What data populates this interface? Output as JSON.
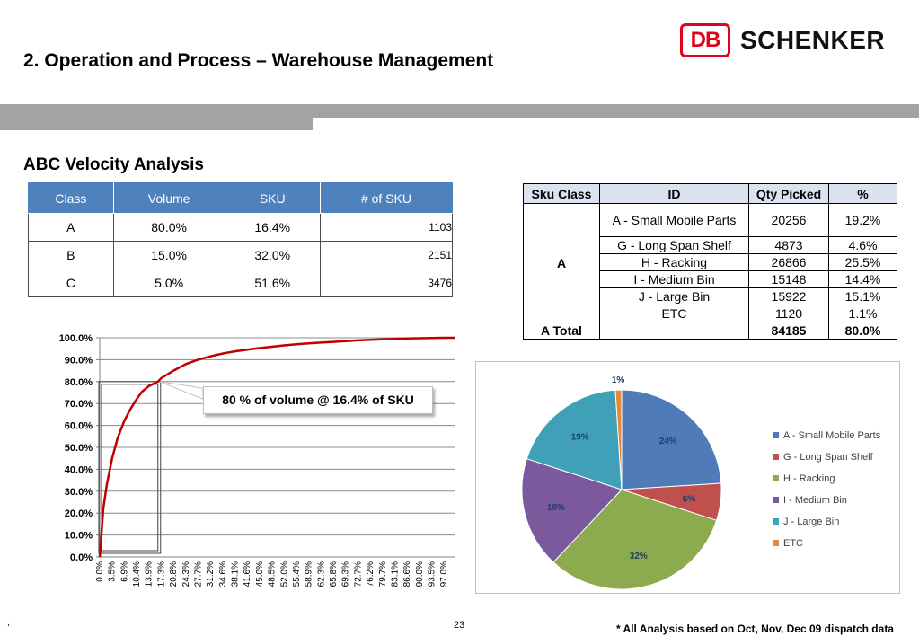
{
  "header": {
    "title": "2. Operation and Process – Warehouse Management",
    "logo": {
      "db_text": "DB",
      "brand_text": "SCHENKER",
      "db_color": "#e2001a"
    }
  },
  "subtitle": "ABC Velocity Analysis",
  "abc_table": {
    "headers": [
      "Class",
      "Volume",
      "SKU",
      "# of SKU"
    ],
    "rows": [
      [
        "A",
        "80.0%",
        "16.4%",
        "1103"
      ],
      [
        "B",
        "15.0%",
        "32.0%",
        "2151"
      ],
      [
        "C",
        "5.0%",
        "51.6%",
        "3476"
      ]
    ]
  },
  "sku_table": {
    "headers": [
      "Sku Class",
      "ID",
      "Qty Picked",
      "%"
    ],
    "class_label": "A",
    "rows": [
      [
        "A - Small Mobile Parts",
        "20256",
        "19.2%"
      ],
      [
        "G - Long Span Shelf",
        "4873",
        "4.6%"
      ],
      [
        "H - Racking",
        "26866",
        "25.5%"
      ],
      [
        "I - Medium Bin",
        "15148",
        "14.4%"
      ],
      [
        "J - Large Bin",
        "15922",
        "15.1%"
      ],
      [
        "ETC",
        "1120",
        "1.1%"
      ]
    ],
    "total": [
      "A Total",
      "",
      "84185",
      "80.0%"
    ]
  },
  "callout": "80 % of volume @ 16.4% of SKU",
  "footer": {
    "page_number": "23",
    "comma": ",",
    "note": "* All Analysis based on Oct, Nov, Dec 09 dispatch data"
  },
  "chart_data": [
    {
      "type": "line",
      "title": "",
      "xlabel": "",
      "ylabel": "",
      "ylim": [
        0,
        100
      ],
      "y_ticks": [
        "0.0%",
        "10.0%",
        "20.0%",
        "30.0%",
        "40.0%",
        "50.0%",
        "60.0%",
        "70.0%",
        "80.0%",
        "90.0%",
        "100.0%"
      ],
      "x_ticks": [
        "0.0%",
        "3.5%",
        "6.9%",
        "10.4%",
        "13.9%",
        "17.3%",
        "20.8%",
        "24.3%",
        "27.7%",
        "31.2%",
        "34.6%",
        "38.1%",
        "41.6%",
        "45.0%",
        "48.5%",
        "52.0%",
        "55.4%",
        "58.9%",
        "62.3%",
        "65.8%",
        "69.3%",
        "72.7%",
        "76.2%",
        "79.7%",
        "83.1%",
        "86.6%",
        "90.0%",
        "93.5%",
        "97.0%"
      ],
      "series": [
        {
          "color": "#c00000",
          "x": [
            0,
            1,
            2,
            3.5,
            5,
            6.9,
            8.5,
            10.4,
            12,
            13.9,
            16.4,
            17.3,
            20.8,
            24.3,
            27.7,
            31.2,
            34.6,
            38.1,
            41.6,
            45.0,
            48.5,
            52.0,
            55.4,
            58.9,
            62.3,
            65.8,
            69.3,
            72.7,
            76.2,
            79.7,
            83.1,
            86.6,
            90.0,
            93.5,
            97.0,
            100
          ],
          "y": [
            0,
            22,
            33,
            45,
            54,
            62,
            67,
            72,
            75.5,
            78,
            80,
            81.5,
            85,
            88,
            90,
            91.5,
            92.8,
            93.8,
            94.6,
            95.3,
            95.9,
            96.5,
            97,
            97.4,
            97.8,
            98.1,
            98.5,
            98.8,
            99.1,
            99.3,
            99.5,
            99.7,
            99.8,
            99.9,
            100,
            100
          ]
        }
      ],
      "highlight_x_range": [
        0.5,
        16.4
      ],
      "grid": true
    },
    {
      "type": "pie",
      "title": "",
      "legend_position": "right",
      "slices": [
        {
          "label": "A - Small Mobile Parts",
          "value": 24,
          "display": "24%",
          "color": "#4f7cb8"
        },
        {
          "label": "G - Long Span Shelf",
          "value": 6,
          "display": "6%",
          "color": "#c0504d"
        },
        {
          "label": "H - Racking",
          "value": 32,
          "display": "32%",
          "color": "#8cab4f"
        },
        {
          "label": "I - Medium Bin",
          "value": 18,
          "display": "18%",
          "color": "#7a5a9c"
        },
        {
          "label": "J - Large Bin",
          "value": 19,
          "display": "19%",
          "color": "#3fa0b7"
        },
        {
          "label": "ETC",
          "value": 1,
          "display": "1%",
          "color": "#e8863a"
        }
      ]
    }
  ]
}
